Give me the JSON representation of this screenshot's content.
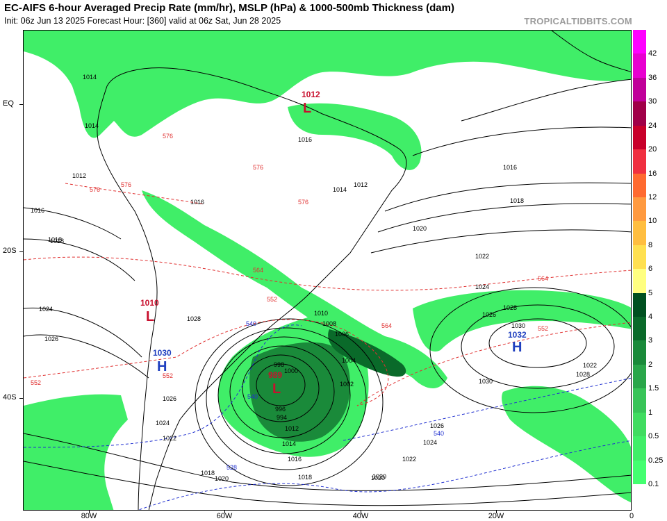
{
  "header": {
    "title": "EC-AIFS 6-hour Averaged Precip Rate (mm/hr), MSLP (hPa) & 1000-500mb Thickness (dam)",
    "subtitle": "Init: 06z Jun 13 2025   Forecast Hour: [360]   valid at 06z Sat, Jun 28 2025",
    "brand": "TROPICALTIDBITS.COM"
  },
  "axes": {
    "lat_labels": [
      "EQ",
      "20S",
      "40S"
    ],
    "lon_labels": [
      "80W",
      "60W",
      "40W",
      "20W",
      "0"
    ]
  },
  "pressure_centers": [
    {
      "type": "L",
      "value": "1012",
      "color": "#c8102e"
    },
    {
      "type": "L",
      "value": "1010",
      "color": "#c8102e"
    },
    {
      "type": "H",
      "value": "1030",
      "color": "#1f3fbf"
    },
    {
      "type": "L",
      "value": "989",
      "color": "#c8102e"
    },
    {
      "type": "H",
      "value": "1032",
      "color": "#1f3fbf"
    }
  ],
  "isobar_labels": [
    "1014",
    "1012",
    "1014",
    "1016",
    "1018",
    "1016",
    "1018",
    "1020",
    "1022",
    "1024",
    "1026",
    "1028",
    "1030",
    "1028",
    "1030",
    "1026",
    "1024",
    "1022",
    "1020",
    "1018",
    "1016",
    "1014",
    "1012",
    "1010",
    "1008",
    "1006",
    "1004",
    "1002",
    "1000",
    "998",
    "996",
    "994",
    "1026",
    "1024",
    "1022",
    "1020",
    "1018",
    "1016",
    "1014",
    "1012",
    "1016",
    "1018",
    "1024",
    "1026",
    "1028",
    "1022",
    "1020"
  ],
  "thickness_labels": [
    "576",
    "576",
    "576",
    "576",
    "576",
    "564",
    "564",
    "552",
    "552",
    "552",
    "540",
    "540",
    "528",
    "540",
    "564",
    "552"
  ],
  "precip_scale": {
    "labels": [
      "42",
      "36",
      "30",
      "24",
      "20",
      "16",
      "12",
      "10",
      "8",
      "6",
      "5",
      "4",
      "3",
      "2",
      "1.5",
      "1",
      "0.5",
      "0.25",
      "0.1"
    ],
    "colors": [
      "#ff00ff",
      "#e800d0",
      "#c0009a",
      "#a00048",
      "#c8002a",
      "#f03040",
      "#ff6a30",
      "#ff9a40",
      "#ffbe40",
      "#ffe050",
      "#ffff80",
      "#005020",
      "#0a6a2a",
      "#1a8a3a",
      "#2aa64a",
      "#38c458",
      "#40dc60",
      "#40ee68",
      "#44ff70"
    ]
  }
}
